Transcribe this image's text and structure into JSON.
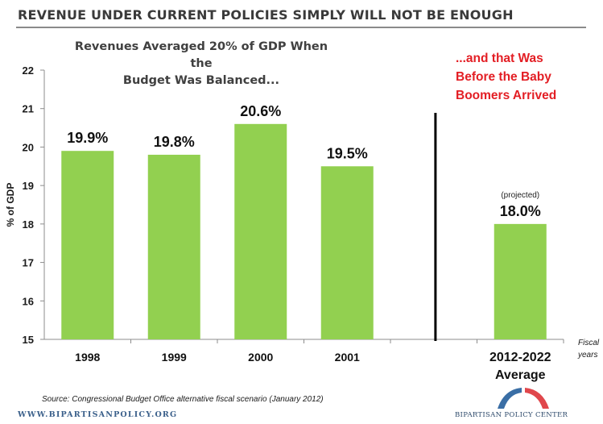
{
  "header": {
    "title": "REVENUE UNDER CURRENT POLICIES SIMPLY WILL NOT BE ENOUGH"
  },
  "subtitle_lines": [
    "Revenues Averaged 20% of GDP When the",
    "Budget Was Balanced..."
  ],
  "annotation_lines": [
    "...and that Was",
    "Before the Baby",
    "Boomers Arrived"
  ],
  "footer": {
    "source": "Source: Congressional Budget Office alternative fiscal scenario (January 2012)",
    "website": "WWW.BIPARTISANPOLICY.ORG",
    "logo_text": "BIPARTISAN POLICY CENTER"
  },
  "colors": {
    "bar": "#92d050",
    "annotation": "#e31e24",
    "axis": "#8c8c8c",
    "separator": "#000000",
    "logo_blue": "#3a6ea5",
    "logo_red": "#e0474c"
  },
  "chart_data": {
    "type": "bar",
    "title": "Revenues Averaged 20% of GDP When the Budget Was Balanced...",
    "xlabel": "Fiscal years",
    "ylabel": "% of GDP",
    "ylim": [
      15,
      22
    ],
    "yticks": [
      15,
      16,
      17,
      18,
      19,
      20,
      21,
      22
    ],
    "grid": false,
    "categories": [
      "1998",
      "1999",
      "2000",
      "2001",
      "",
      "2012-2022 Average"
    ],
    "values": [
      19.9,
      19.8,
      20.6,
      19.5,
      null,
      18.0
    ],
    "data_labels": [
      "19.9%",
      "19.8%",
      "20.6%",
      "19.5%",
      "",
      "18.0%"
    ],
    "category_label_lines": [
      [
        "1998"
      ],
      [
        "1999"
      ],
      [
        "2000"
      ],
      [
        "2001"
      ],
      [],
      [
        "2012-2022",
        "Average"
      ]
    ],
    "annotations": [
      {
        "text": "(projected)",
        "category": "2012-2022 Average"
      },
      {
        "text": "...and that Was Before the Baby Boomers Arrived",
        "placement": "top-right"
      }
    ],
    "separator_after_category_index": 4,
    "xlabel_lines": [
      "Fiscal",
      "years"
    ]
  }
}
